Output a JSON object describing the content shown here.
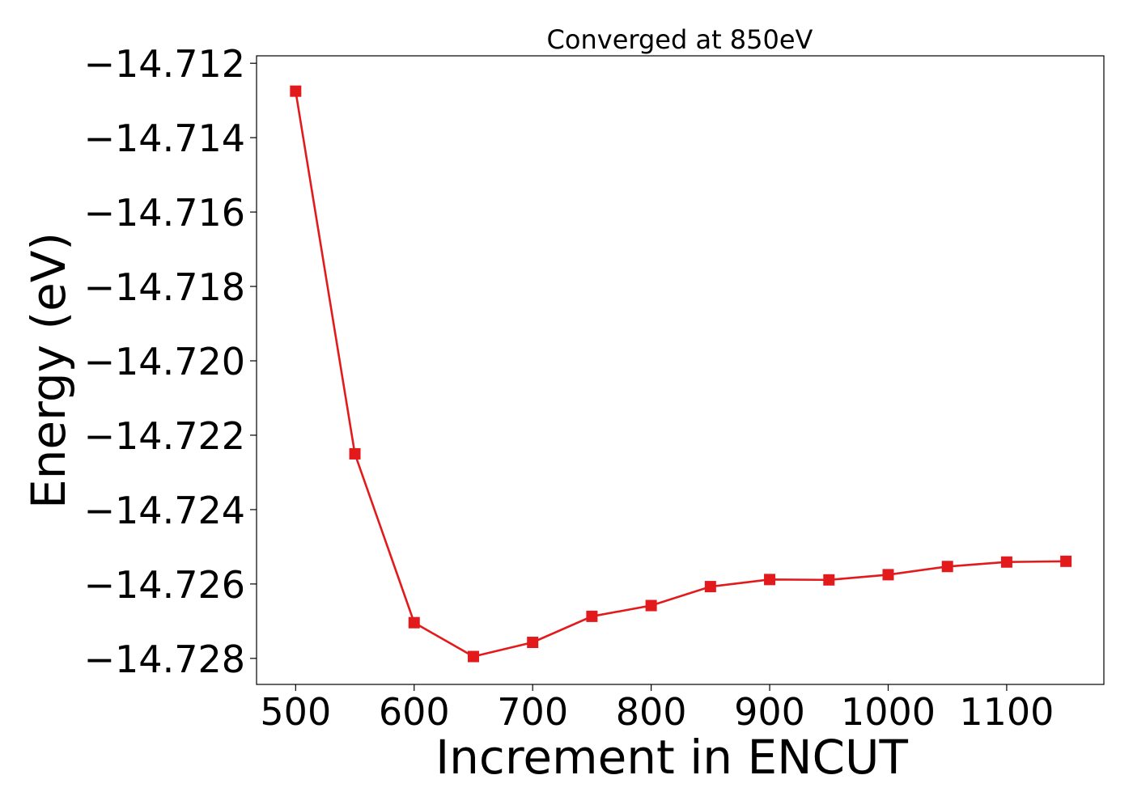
{
  "chart_data": {
    "type": "line",
    "title": "Converged at 850eV",
    "xlabel": "Increment in ENCUT",
    "ylabel": "Energy (eV)",
    "xlim": [
      467,
      1182
    ],
    "ylim": [
      -14.7287,
      -14.7118
    ],
    "xticks": [
      500,
      600,
      700,
      800,
      900,
      1000,
      1100
    ],
    "xtick_labels": [
      "500",
      "600",
      "700",
      "800",
      "900",
      "1000",
      "1100"
    ],
    "yticks": [
      -14.712,
      -14.714,
      -14.716,
      -14.718,
      -14.72,
      -14.722,
      -14.724,
      -14.726,
      -14.728
    ],
    "ytick_labels": [
      "−14.712",
      "−14.714",
      "−14.716",
      "−14.718",
      "−14.720",
      "−14.722",
      "−14.724",
      "−14.726",
      "−14.728"
    ],
    "grid": false,
    "series": [
      {
        "color": "#e31a1c",
        "marker": "square",
        "x": [
          500,
          550,
          600,
          650,
          700,
          750,
          800,
          850,
          900,
          950,
          1000,
          1050,
          1100,
          1150
        ],
        "y": [
          -14.71275,
          -14.7225,
          -14.72704,
          -14.72795,
          -14.72757,
          -14.72687,
          -14.72658,
          -14.72607,
          -14.72588,
          -14.72589,
          -14.72575,
          -14.72553,
          -14.72541,
          -14.72539
        ]
      }
    ]
  }
}
